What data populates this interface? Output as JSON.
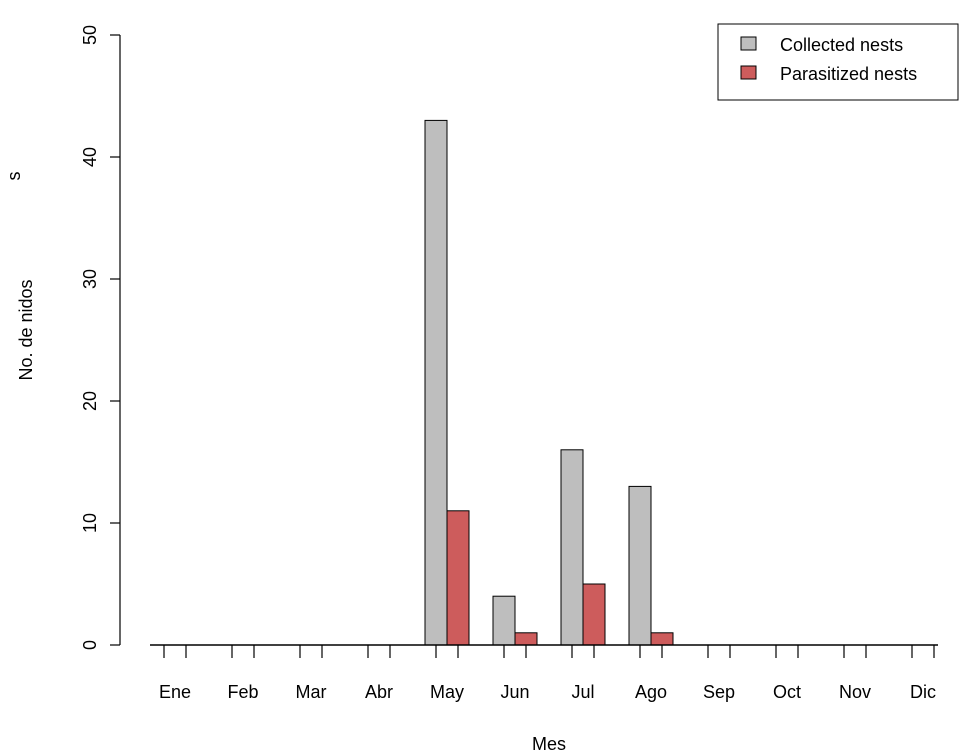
{
  "chart_data": {
    "type": "bar",
    "categories": [
      "Ene",
      "Feb",
      "Mar",
      "Abr",
      "May",
      "Jun",
      "Jul",
      "Ago",
      "Sep",
      "Oct",
      "Nov",
      "Dic"
    ],
    "series": [
      {
        "name": "Collected nests",
        "color": "#bebebe",
        "values": [
          0,
          0,
          0,
          0,
          43,
          4,
          16,
          13,
          0,
          0,
          0,
          0
        ]
      },
      {
        "name": "Parasitized nests",
        "color": "#cd5c5c",
        "values": [
          0,
          0,
          0,
          0,
          11,
          1,
          5,
          1,
          0,
          0,
          0,
          0
        ]
      }
    ],
    "xlabel": "Mes",
    "ylabel": "No. de nidos",
    "ylabel_extra": "s",
    "ylim": [
      0,
      50
    ],
    "yticks": [
      0,
      10,
      20,
      30,
      40,
      50
    ],
    "grid": false,
    "legend_position": "top-right"
  }
}
